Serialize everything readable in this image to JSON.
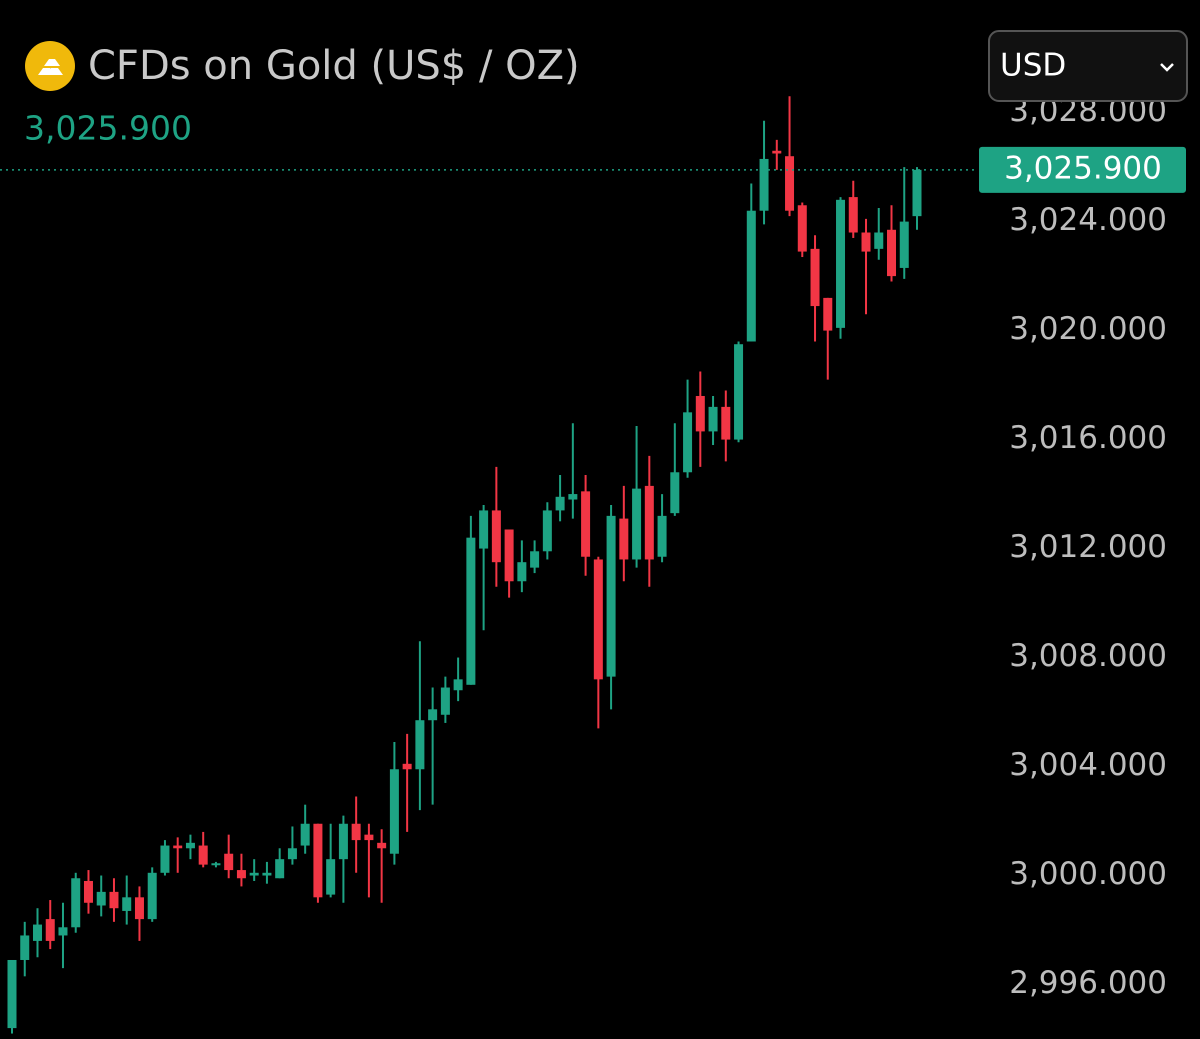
{
  "chart_data": {
    "type": "candlestick",
    "title": "CFDs on Gold (US$ / OZ)",
    "currency": "USD",
    "last_price": {
      "value": 3025.9,
      "label": "3,025.900"
    },
    "up_color": "#1ea384",
    "down_color": "#f23645",
    "ylim": [
      2994,
      3028.5
    ],
    "yticks": [
      {
        "value": 2996,
        "label": "2,996.000"
      },
      {
        "value": 3000,
        "label": "3,000.000"
      },
      {
        "value": 3004,
        "label": "3,004.000"
      },
      {
        "value": 3008,
        "label": "3,008.000"
      },
      {
        "value": 3012,
        "label": "3,012.000"
      },
      {
        "value": 3016,
        "label": "3,016.000"
      },
      {
        "value": 3020,
        "label": "3,020.000"
      },
      {
        "value": 3024,
        "label": "3,024.000"
      },
      {
        "value": 3028,
        "label": "3,028.000"
      }
    ],
    "open": [
      2994.4,
      2996.9,
      2997.6,
      2998.4,
      2997.8,
      2998.1,
      2999.8,
      2998.9,
      2999.4,
      2998.7,
      2999.2,
      2998.4,
      3000.1,
      3001.1,
      3001.0,
      3001.1,
      3000.4,
      3000.8,
      3000.2,
      3000.0,
      3000.0,
      2999.9,
      3000.6,
      3001.1,
      3001.9,
      2999.3,
      3000.6,
      3001.9,
      3001.5,
      3001.2,
      3000.8,
      3004.1,
      3003.9,
      3005.7,
      3005.9,
      3006.8,
      3007.0,
      3012.0,
      3013.4,
      3012.7,
      3010.8,
      3011.3,
      3011.9,
      3013.4,
      3013.8,
      3014.1,
      3011.6,
      3007.3,
      3013.1,
      3011.6,
      3014.3,
      3011.7,
      3013.3,
      3014.8,
      3017.6,
      3016.3,
      3017.2,
      3016.0,
      3019.6,
      3024.4,
      3026.6,
      3026.4,
      3024.6,
      3023.0,
      3021.2,
      3020.1,
      3024.9,
      3023.6,
      3023.0,
      3023.7,
      3022.3,
      3024.2
    ],
    "high": [
      2996.9,
      2998.3,
      2998.8,
      2999.1,
      2999.0,
      3000.1,
      3000.2,
      3000.0,
      2999.9,
      3000.0,
      2999.6,
      3000.3,
      3001.3,
      3001.4,
      3001.5,
      3001.6,
      3000.5,
      3001.5,
      3000.8,
      3000.6,
      3000.5,
      3001.0,
      3001.8,
      3002.6,
      3001.9,
      3001.9,
      3002.2,
      3002.9,
      3001.9,
      3001.7,
      3004.9,
      3005.2,
      3008.6,
      3006.9,
      3007.3,
      3008.0,
      3013.2,
      3013.6,
      3015.0,
      3012.7,
      3012.3,
      3012.3,
      3013.7,
      3014.7,
      3016.6,
      3014.7,
      3011.7,
      3013.6,
      3014.3,
      3016.5,
      3015.4,
      3014.0,
      3016.6,
      3018.2,
      3018.5,
      3017.6,
      3017.8,
      3019.6,
      3025.4,
      3027.7,
      3027.0,
      3028.6,
      3024.7,
      3023.5,
      3021.2,
      3024.9,
      3025.5,
      3024.1,
      3024.5,
      3024.6,
      3026.0,
      3026.0
    ],
    "low": [
      2994.2,
      2996.3,
      2997.0,
      2997.3,
      2996.6,
      2997.9,
      2998.6,
      2998.5,
      2998.3,
      2998.2,
      2997.6,
      2998.3,
      3000.0,
      3000.1,
      3000.6,
      3000.3,
      3000.3,
      2999.9,
      2999.6,
      2999.8,
      2999.7,
      2999.9,
      3000.4,
      3000.8,
      2999.0,
      2999.2,
      2999.0,
      3000.1,
      2999.2,
      2999.0,
      3000.4,
      3001.6,
      3002.4,
      3002.6,
      3005.6,
      3006.4,
      3007.0,
      3009.0,
      3010.6,
      3010.2,
      3010.4,
      3011.1,
      3011.6,
      3013.0,
      3013.1,
      3011.0,
      3005.4,
      3006.1,
      3010.8,
      3011.3,
      3010.6,
      3011.5,
      3013.2,
      3014.6,
      3015.0,
      3015.8,
      3015.2,
      3015.9,
      3019.6,
      3023.9,
      3025.9,
      3024.2,
      3022.7,
      3019.6,
      3018.2,
      3019.7,
      3023.4,
      3020.6,
      3022.6,
      3021.8,
      3021.9,
      3023.7
    ],
    "close": [
      2996.9,
      2997.8,
      2998.2,
      2997.6,
      2998.1,
      2999.9,
      2999.0,
      2999.4,
      2998.8,
      2999.2,
      2998.4,
      3000.1,
      3001.1,
      3001.0,
      3001.2,
      3000.4,
      3000.45,
      3000.2,
      2999.9,
      3000.1,
      3000.1,
      3000.6,
      3001.0,
      3001.9,
      2999.2,
      3000.6,
      3001.9,
      3001.3,
      3001.3,
      3001.0,
      3003.9,
      3003.9,
      3005.7,
      3006.1,
      3006.9,
      3007.2,
      3012.4,
      3013.4,
      3011.5,
      3010.8,
      3011.5,
      3011.9,
      3013.4,
      3013.9,
      3014.0,
      3011.7,
      3007.2,
      3013.2,
      3011.6,
      3014.2,
      3011.6,
      3013.2,
      3014.8,
      3017.0,
      3016.3,
      3017.2,
      3016.0,
      3019.5,
      3024.4,
      3026.3,
      3026.5,
      3024.4,
      3022.9,
      3020.9,
      3020.0,
      3024.8,
      3023.6,
      3022.9,
      3023.6,
      3022.0,
      3024.0,
      3025.9
    ]
  }
}
